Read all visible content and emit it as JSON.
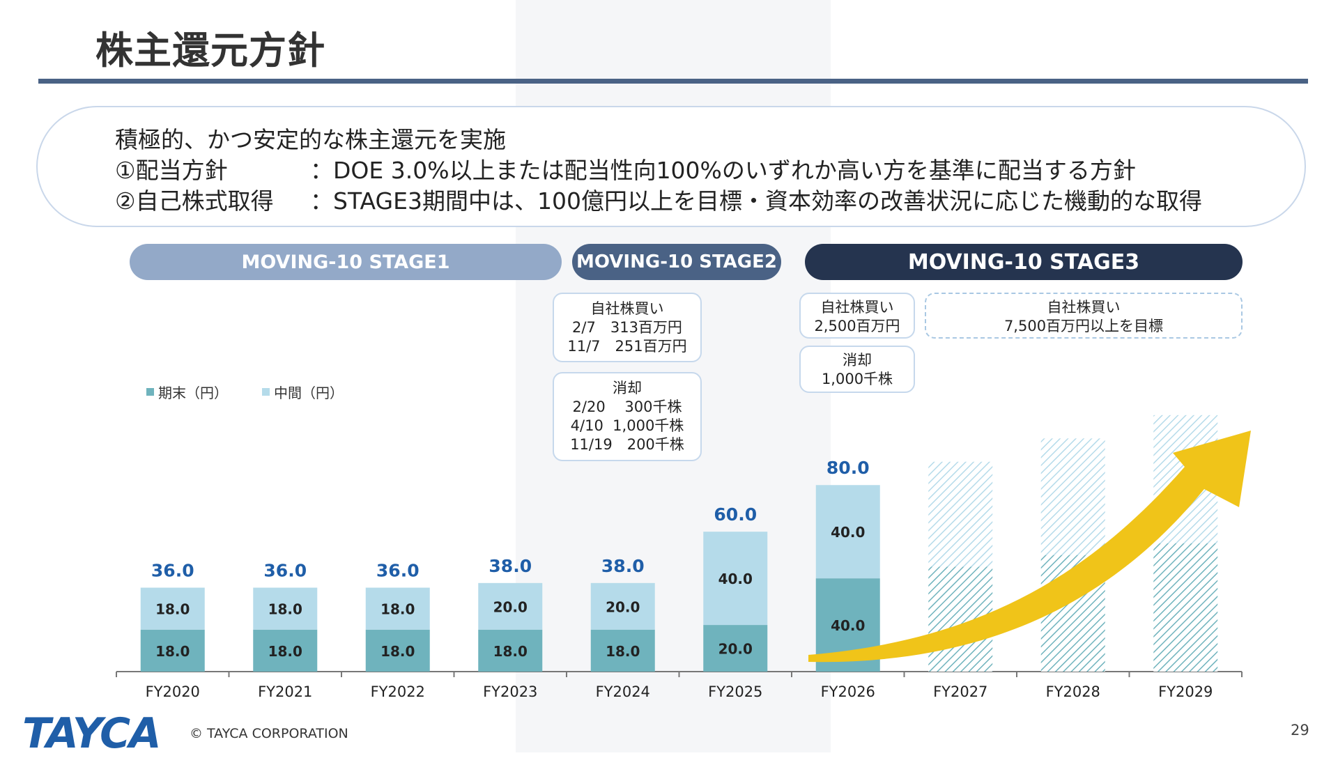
{
  "title": "株主還元方針",
  "policy": {
    "line1": "積極的、かつ安定的な株主還元を実施",
    "line2_label": "①配当方針",
    "line2_text": "：DOE 3.0%以上または配当性向100%のいずれか高い方を基準に配当する方針",
    "line3_label": "②自己株式取得",
    "line3_text": "：STAGE3期間中は、100億円以上を目標・資本効率の改善状況に応じた機動的な取得"
  },
  "stages": [
    {
      "label": "MOVING-10 STAGE1",
      "color": "#93a9c8"
    },
    {
      "label": "MOVING-10 STAGE2",
      "color": "#4a6285"
    },
    {
      "label": "MOVING-10 STAGE3",
      "color": "#25344f"
    }
  ],
  "notes": {
    "buyback_2024": [
      "自社株買い",
      "2/7　313百万円",
      "11/7　251百万円"
    ],
    "cancel_2024": [
      "消却",
      "2/20　 300千株",
      "4/10  1,000千株",
      "11/19　200千株"
    ],
    "buyback_2026": [
      "自社株買い",
      "2,500百万円"
    ],
    "cancel_2026": [
      "消却",
      "1,000千株"
    ],
    "buyback_target": [
      "自社株買い",
      "7,500百万円以上を目標"
    ]
  },
  "legend": {
    "period_end": "期末（円）",
    "interim": "中間（円）"
  },
  "colors": {
    "period_end": "#6fb3bd",
    "interim": "#b5dbea",
    "total_label": "#1f5ea8",
    "arrow": "#f0c419"
  },
  "chart_data": {
    "type": "bar",
    "stacked": true,
    "categories": [
      "FY2020",
      "FY2021",
      "FY2022",
      "FY2023",
      "FY2024",
      "FY2025",
      "FY2026",
      "FY2027",
      "FY2028",
      "FY2029"
    ],
    "series": [
      {
        "name": "期末（円）",
        "values": [
          18.0,
          18.0,
          18.0,
          18.0,
          18.0,
          20.0,
          40.0,
          null,
          null,
          null
        ]
      },
      {
        "name": "中間（円）",
        "values": [
          18.0,
          18.0,
          18.0,
          20.0,
          20.0,
          40.0,
          40.0,
          null,
          null,
          null
        ]
      }
    ],
    "totals": [
      36.0,
      36.0,
      36.0,
      38.0,
      38.0,
      60.0,
      80.0,
      null,
      null,
      null
    ],
    "projected": [
      {
        "category": "FY2027",
        "period_end": 45,
        "interim": 45
      },
      {
        "category": "FY2028",
        "period_end": 50,
        "interim": 50
      },
      {
        "category": "FY2029",
        "period_end": 55,
        "interim": 55
      }
    ],
    "value_labels": {
      "period_end": [
        "18.0",
        "18.0",
        "18.0",
        "18.0",
        "18.0",
        "20.0",
        "40.0"
      ],
      "interim": [
        "18.0",
        "18.0",
        "18.0",
        "20.0",
        "20.0",
        "40.0",
        "40.0"
      ],
      "totals": [
        "36.0",
        "36.0",
        "36.0",
        "38.0",
        "38.0",
        "60.0",
        "80.0"
      ]
    },
    "ylim": [
      0,
      90
    ],
    "legend_position": "top-left",
    "annotation": "upward arrow across FY2026–FY2029"
  },
  "footer": {
    "logo": "TAYCA",
    "copyright": "© TAYCA CORPORATION",
    "page": "29"
  }
}
